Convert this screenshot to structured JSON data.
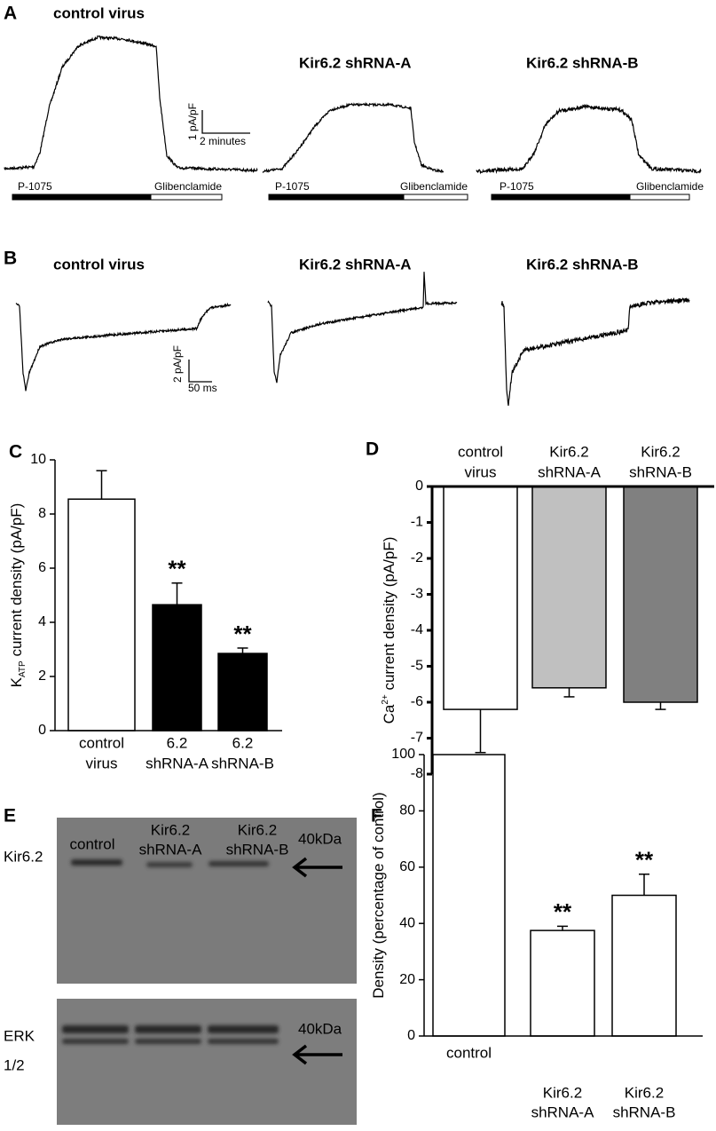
{
  "panel_a": {
    "label": "A",
    "traces": [
      {
        "title": "control virus",
        "drug1": "P-1075",
        "drug2": "Glibenclamide"
      },
      {
        "title": "Kir6.2 shRNA-A",
        "drug1": "P-1075",
        "drug2": "Glibenclamide"
      },
      {
        "title": "Kir6.2 shRNA-B",
        "drug1": "P-1075",
        "drug2": "Glibenclamide"
      }
    ],
    "scale_y": "1 pA/pF",
    "scale_x": "2 minutes"
  },
  "panel_b": {
    "label": "B",
    "titles": [
      "control virus",
      "Kir6.2 shRNA-A",
      "Kir6.2 shRNA-B"
    ],
    "scale_y": "2 pA/pF",
    "scale_x": "50 ms"
  },
  "panel_e": {
    "label": "E",
    "lanes": [
      [
        "control"
      ],
      [
        "Kir6.2",
        "shRNA-A"
      ],
      [
        "Kir6.2",
        "shRNA-B"
      ]
    ],
    "blots": [
      {
        "name": [
          "Kir6.2"
        ],
        "marker": "40kDa"
      },
      {
        "name": [
          "ERK",
          "1/2"
        ],
        "marker": "40kDa"
      }
    ]
  },
  "chart_data": [
    {
      "type": "bar",
      "panel": "C",
      "ylabel": {
        "base": "K",
        "sub": "ATP",
        "text": " current density (pA/pF)"
      },
      "categories": [
        [
          "control",
          "virus"
        ],
        [
          "6.2",
          "shRNA-A"
        ],
        [
          "6.2",
          "shRNA-B"
        ]
      ],
      "values": [
        8.55,
        4.65,
        2.85
      ],
      "errors": [
        1.05,
        0.8,
        0.2
      ],
      "significance": [
        null,
        "**",
        "**"
      ],
      "colors": [
        "#ffffff",
        "#000000",
        "#000000"
      ],
      "ylim": [
        0,
        10
      ],
      "yticks": [
        0,
        2,
        4,
        6,
        8,
        10
      ]
    },
    {
      "type": "bar",
      "panel": "D",
      "ylabel": {
        "base": "Ca",
        "sup": "2+",
        "text": " current density (pA/pF)"
      },
      "categories": [
        [
          "control",
          "virus"
        ],
        [
          "Kir6.2",
          "shRNA-A"
        ],
        [
          "Kir6.2",
          "shRNA-B"
        ]
      ],
      "values": [
        -6.2,
        -5.6,
        -6.0
      ],
      "errors": [
        1.2,
        0.25,
        0.2
      ],
      "colors": [
        "#ffffff",
        "#c0c0c0",
        "#808080"
      ],
      "ylim": [
        -8,
        0
      ],
      "yticks": [
        0,
        -1,
        -2,
        -3,
        -4,
        -5,
        -6,
        -7,
        -8
      ]
    },
    {
      "type": "bar",
      "panel": "F",
      "ylabel": {
        "text": "Density (percentage of control)"
      },
      "categories": [
        [
          "control"
        ],
        [
          "Kir6.2",
          "shRNA-A"
        ],
        [
          "Kir6.2",
          "shRNA-B"
        ]
      ],
      "values": [
        100,
        37.5,
        50
      ],
      "errors": [
        null,
        1.5,
        7.5
      ],
      "significance": [
        null,
        "**",
        "**"
      ],
      "colors": [
        "#ffffff",
        "#ffffff",
        "#ffffff"
      ],
      "ylim": [
        0,
        100
      ],
      "yticks": [
        0,
        20,
        40,
        60,
        80,
        100
      ]
    }
  ]
}
